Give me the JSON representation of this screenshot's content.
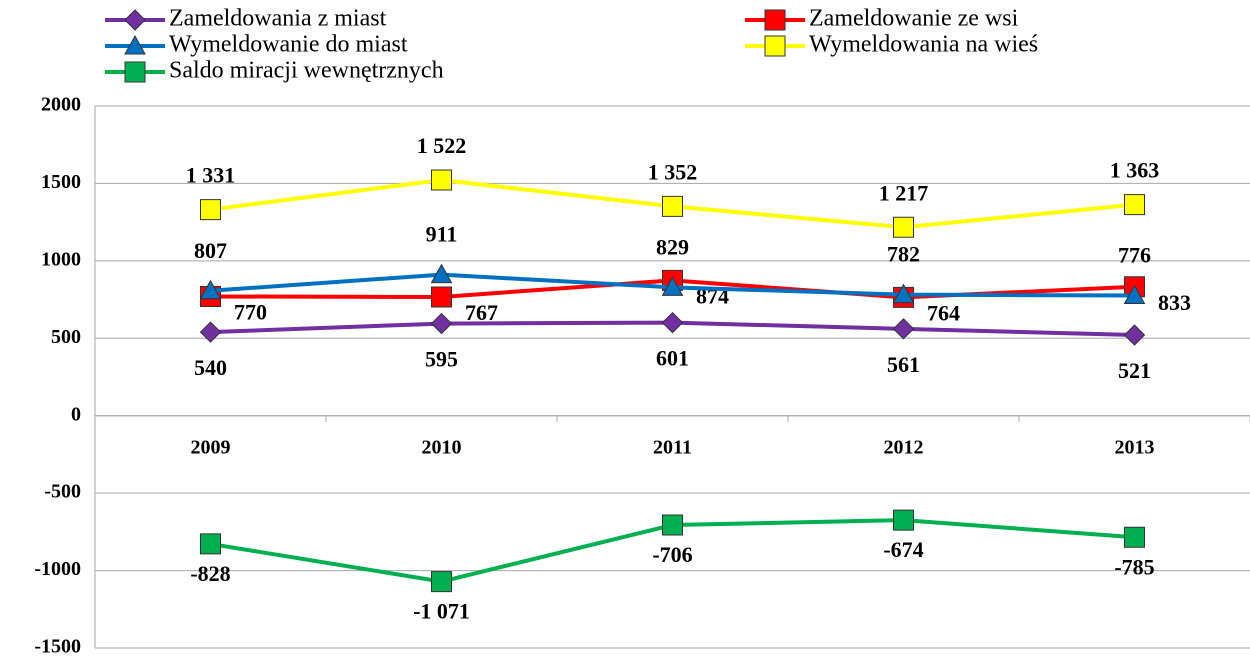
{
  "chart_data": {
    "type": "line",
    "categories": [
      "2009",
      "2010",
      "2011",
      "2012",
      "2013"
    ],
    "series": [
      {
        "name": "Zameldowania z miast",
        "color": "#7030a0",
        "marker": "diamond",
        "values": [
          540,
          595,
          601,
          561,
          521
        ]
      },
      {
        "name": "Zameldowanie ze wsi",
        "color": "#ff0000",
        "marker": "square",
        "values": [
          770,
          767,
          874,
          764,
          833
        ]
      },
      {
        "name": "Wymeldowanie do miast",
        "color": "#0070c0",
        "marker": "triangle",
        "values": [
          807,
          911,
          829,
          782,
          776
        ]
      },
      {
        "name": "Wymeldowania na wieś",
        "color": "#ffff00",
        "marker": "square",
        "values": [
          1331,
          1522,
          1352,
          1217,
          1363
        ],
        "value_labels": [
          "1 331",
          "1 522",
          "1 352",
          "1 217",
          "1 363"
        ]
      },
      {
        "name": "Saldo miracji wewnętrznych",
        "color": "#00b050",
        "marker": "square",
        "values": [
          -828,
          -1071,
          -706,
          -674,
          -785
        ],
        "value_labels": [
          "-828",
          "-1 071",
          "-706",
          "-674",
          "-785"
        ]
      }
    ],
    "ylim": [
      -1500,
      2000
    ],
    "yticks": [
      -1500,
      -1000,
      -500,
      0,
      500,
      1000,
      1500,
      2000
    ],
    "grid": true,
    "legend": "top"
  }
}
